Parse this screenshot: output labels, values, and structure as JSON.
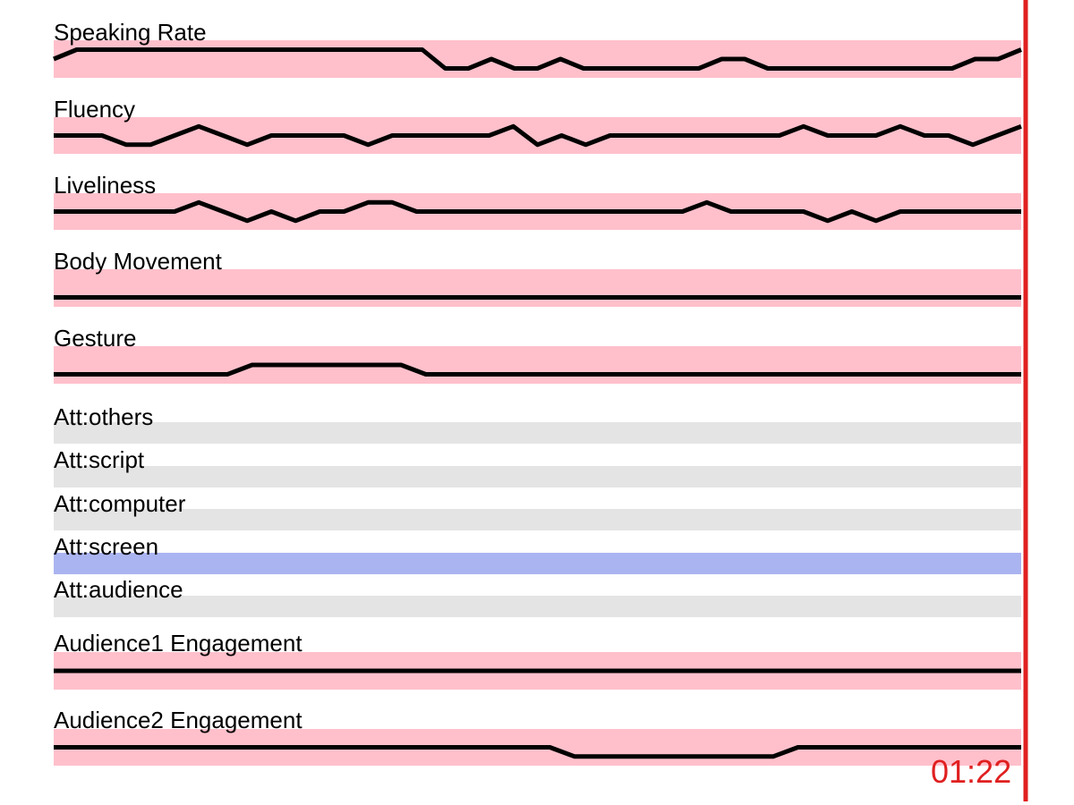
{
  "time_readout": "01:22",
  "colors": {
    "continuous_band": "#ffc0cb",
    "attention_band": "#e4e4e4",
    "attention_active": "#aab4f0",
    "trace": "#000000",
    "playhead": "#e02020"
  },
  "tracks": [
    {
      "label": "Speaking Rate",
      "kind": "continuous",
      "level_range": [
        0,
        4
      ],
      "values": [
        2,
        3,
        3,
        3,
        3,
        3,
        3,
        3,
        3,
        3,
        3,
        3,
        3,
        3,
        3,
        3,
        3,
        1,
        1,
        2,
        1,
        1,
        2,
        1,
        1,
        1,
        1,
        1,
        1,
        2,
        2,
        1,
        1,
        1,
        1,
        1,
        1,
        1,
        1,
        1,
        2,
        2,
        3
      ]
    },
    {
      "label": "Fluency",
      "kind": "continuous",
      "level_range": [
        0,
        4
      ],
      "values": [
        2,
        2,
        2,
        1,
        1,
        2,
        3,
        2,
        1,
        2,
        2,
        2,
        2,
        1,
        2,
        2,
        2,
        2,
        2,
        3,
        1,
        2,
        1,
        2,
        2,
        2,
        2,
        2,
        2,
        2,
        2,
        3,
        2,
        2,
        2,
        3,
        2,
        2,
        1,
        2,
        3
      ]
    },
    {
      "label": "Liveliness",
      "kind": "continuous",
      "level_range": [
        0,
        4
      ],
      "values": [
        2,
        2,
        2,
        2,
        2,
        2,
        3,
        2,
        1,
        2,
        1,
        2,
        2,
        3,
        3,
        2,
        2,
        2,
        2,
        2,
        2,
        2,
        2,
        2,
        2,
        2,
        2,
        3,
        2,
        2,
        2,
        2,
        1,
        2,
        1,
        2,
        2,
        2,
        2,
        2,
        2
      ]
    },
    {
      "label": "Body Movement",
      "kind": "continuous",
      "level_range": [
        0,
        4
      ],
      "values": [
        1,
        1
      ]
    },
    {
      "label": "Gesture",
      "kind": "continuous",
      "level_range": [
        0,
        4
      ],
      "values": [
        1,
        1,
        1,
        1,
        1,
        1,
        1,
        1,
        2,
        2,
        2,
        2,
        2,
        2,
        2,
        1,
        1,
        1,
        1,
        1,
        1,
        1,
        1,
        1,
        1,
        1,
        1,
        1,
        1,
        1,
        1,
        1,
        1,
        1,
        1,
        1,
        1,
        1,
        1,
        1
      ]
    },
    {
      "label": "Att:others",
      "kind": "attention",
      "active": false
    },
    {
      "label": "Att:script",
      "kind": "attention",
      "active": false
    },
    {
      "label": "Att:computer",
      "kind": "attention",
      "active": false
    },
    {
      "label": "Att:screen",
      "kind": "attention",
      "active": true
    },
    {
      "label": "Att:audience",
      "kind": "attention",
      "active": false
    },
    {
      "label": "Audience1 Engagement",
      "kind": "continuous",
      "level_range": [
        0,
        4
      ],
      "values": [
        2,
        2
      ]
    },
    {
      "label": "Audience2 Engagement",
      "kind": "continuous",
      "level_range": [
        0,
        4
      ],
      "values": [
        2,
        2,
        2,
        2,
        2,
        2,
        2,
        2,
        2,
        2,
        2,
        2,
        2,
        2,
        2,
        2,
        2,
        2,
        2,
        2,
        2,
        1,
        1,
        1,
        1,
        1,
        1,
        1,
        1,
        1,
        2,
        2,
        2,
        2,
        2,
        2,
        2,
        2,
        2,
        2
      ]
    }
  ]
}
